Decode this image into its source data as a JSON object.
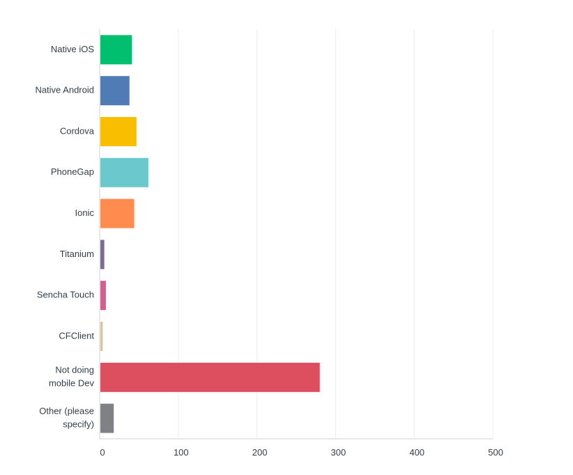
{
  "chart_data": {
    "type": "bar",
    "orientation": "horizontal",
    "title": "",
    "xlabel": "",
    "ylabel": "",
    "categories": [
      "Native iOS",
      "Native Android",
      "Cordova",
      "PhoneGap",
      "Ionic",
      "Titanium",
      "Sencha Touch",
      "CFClient",
      "Not doing mobile Dev",
      "Other (please specify)"
    ],
    "category_lines": [
      [
        "Native iOS"
      ],
      [
        "Native Android"
      ],
      [
        "Cordova"
      ],
      [
        "PhoneGap"
      ],
      [
        "Ionic"
      ],
      [
        "Titanium"
      ],
      [
        "Sencha Touch"
      ],
      [
        "CFClient"
      ],
      [
        "Not doing",
        "mobile Dev"
      ],
      [
        "Other (please",
        "specify)"
      ]
    ],
    "values": [
      40,
      37,
      46,
      61,
      43,
      5,
      7,
      3,
      279,
      17
    ],
    "colors": [
      "#00bf6f",
      "#507cb6",
      "#f9be00",
      "#6bc8cd",
      "#ff8b4f",
      "#7f6a93",
      "#d25f90",
      "#d5c8a0",
      "#dd4f5f",
      "#7f8184"
    ],
    "xlim": [
      0,
      500
    ],
    "ticks": [
      0,
      100,
      200,
      300,
      400,
      500
    ],
    "tick_labels": [
      "0",
      "100",
      "200",
      "300",
      "400",
      "500"
    ],
    "grid": true,
    "legend": "none"
  }
}
